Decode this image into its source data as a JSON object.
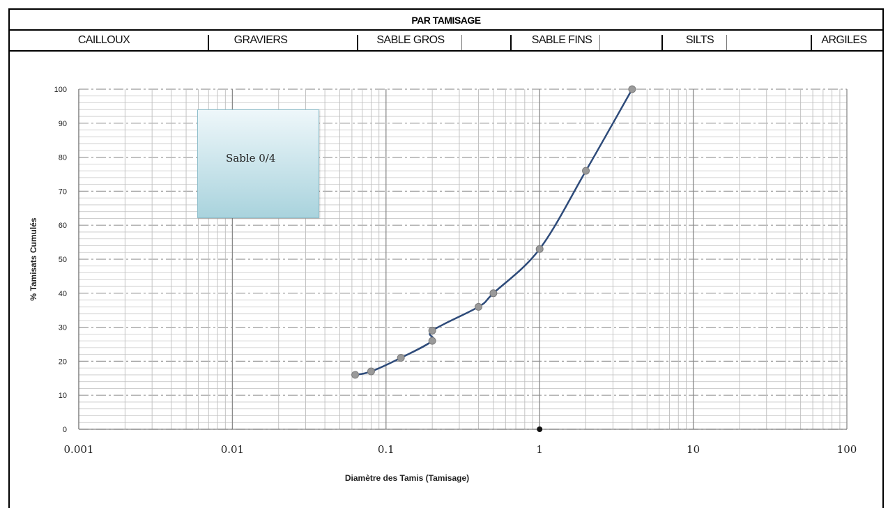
{
  "header": {
    "title": "PAR TAMISAGE",
    "classes": [
      "CAILLOUX",
      "GRAVIERS",
      "SABLE GROS",
      "SABLE FINS",
      "SILTS",
      "ARGILES"
    ]
  },
  "callout": {
    "text": "Sable 0/4"
  },
  "colors": {
    "curve": "#2e4b7a",
    "marker": "#9a9a9a",
    "grid": "#b0b0b0",
    "callout_top": "#eef7fa",
    "callout_bottom": "#a9d3dd"
  },
  "chart_data": {
    "type": "line",
    "xlabel": "Diamètre des Tamis (Tamisage)",
    "ylabel": "% Tamisats Cumulés",
    "x_scale": "log",
    "xlim": [
      0.001,
      100
    ],
    "ylim": [
      0,
      100
    ],
    "x_ticks": [
      "0.001",
      "0.01",
      "0.1",
      "1",
      "10",
      "100"
    ],
    "y_ticks": [
      "0",
      "10",
      "20",
      "30",
      "40",
      "50",
      "60",
      "70",
      "80",
      "90",
      "100"
    ],
    "grid": true,
    "series": [
      {
        "x": [
          0.063,
          0.08,
          0.125,
          0.2,
          0.2,
          0.4,
          0.5,
          1,
          2,
          4
        ],
        "y": [
          16,
          17,
          21,
          26,
          29,
          36,
          40,
          53,
          76,
          100
        ]
      }
    ],
    "extra_point": {
      "x": 1,
      "y": 0
    }
  }
}
